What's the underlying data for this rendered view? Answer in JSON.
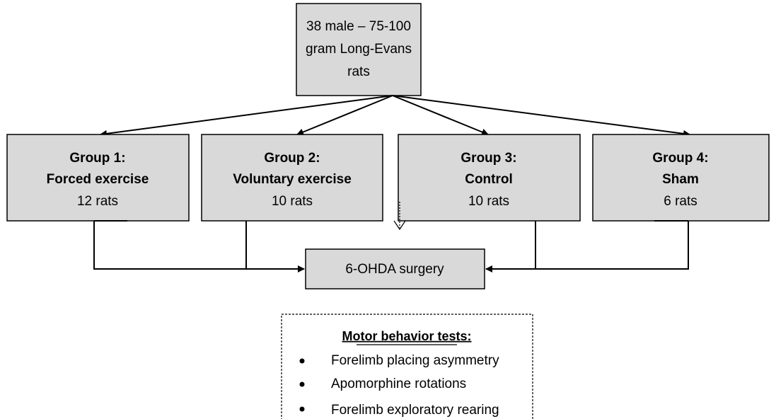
{
  "source": {
    "lines": [
      "38 male – 75-100",
      "gram Long-Evans",
      "rats"
    ]
  },
  "groups": [
    {
      "title": "Group 1:",
      "subtitle": "Forced exercise",
      "count": "12 rats"
    },
    {
      "title": "Group 2:",
      "subtitle": "Voluntary exercise",
      "count": "10 rats"
    },
    {
      "title": "Group 3:",
      "subtitle": "Control",
      "count": "10 rats"
    },
    {
      "title": "Group 4:",
      "subtitle": "Sham",
      "count": "6 rats"
    }
  ],
  "surgery": "6-OHDA surgery",
  "tests": {
    "title": "Motor behavior tests:",
    "items": [
      "Forelimb placing asymmetry",
      "Apomorphine rotations",
      "Forelimb exploratory rearing"
    ]
  }
}
